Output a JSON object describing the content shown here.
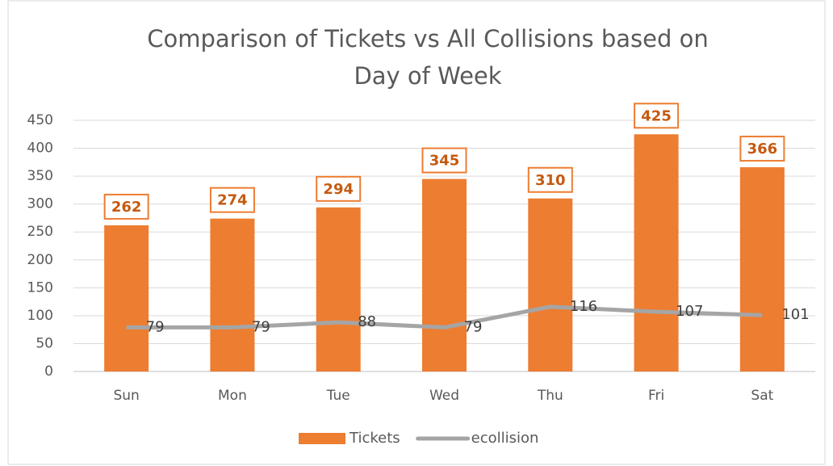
{
  "chart_data": {
    "type": "combo",
    "title": [
      "Comparison of Tickets vs All Collisions based on",
      "Day of Week"
    ],
    "categories": [
      "Sun",
      "Mon",
      "Tue",
      "Wed",
      "Thu",
      "Fri",
      "Sat"
    ],
    "series": [
      {
        "name": "Tickets",
        "type": "bar",
        "color": "#ed7d31",
        "values": [
          262,
          274,
          294,
          345,
          310,
          425,
          366
        ]
      },
      {
        "name": "ecollision",
        "type": "line",
        "color": "#a5a5a5",
        "values": [
          79,
          79,
          88,
          79,
          116,
          107,
          101
        ]
      }
    ],
    "ylim": [
      0,
      450
    ],
    "yticks": [
      0,
      50,
      100,
      150,
      200,
      250,
      300,
      350,
      400,
      450
    ],
    "grid": true,
    "legend": "bottom"
  }
}
